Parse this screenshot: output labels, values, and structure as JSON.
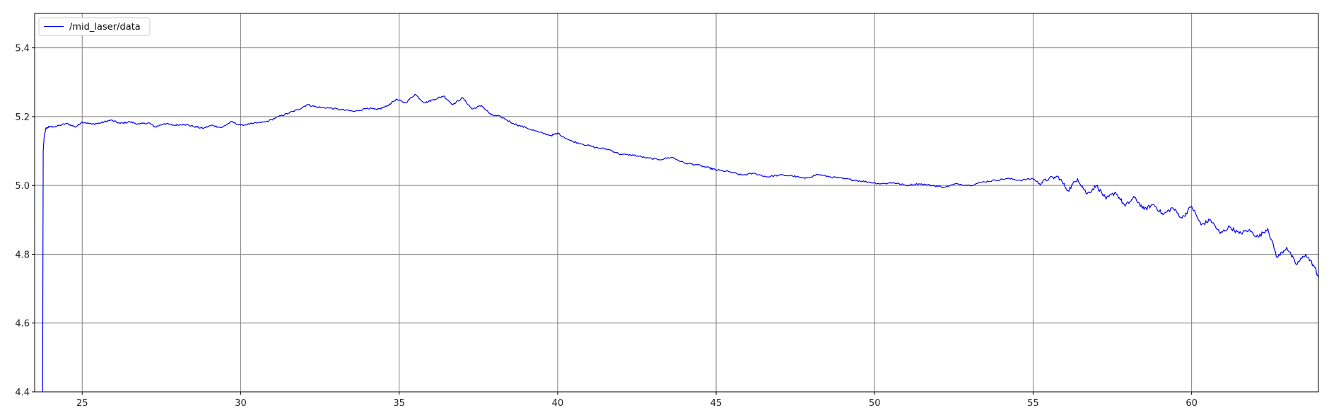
{
  "chart_data": {
    "type": "line",
    "title": "",
    "xlabel": "",
    "ylabel": "",
    "xlim": [
      23.5,
      64.0
    ],
    "ylim": [
      4.4,
      5.5
    ],
    "grid": true,
    "legend_position": "top-left",
    "x_ticks": [
      25,
      30,
      35,
      40,
      45,
      50,
      55,
      60
    ],
    "y_ticks": [
      4.4,
      4.6,
      4.8,
      5.0,
      5.2,
      5.4
    ],
    "x_tick_labels": [
      "25",
      "30",
      "35",
      "40",
      "45",
      "50",
      "55",
      "60"
    ],
    "y_tick_labels": [
      "4.4",
      "4.6",
      "4.8",
      "5.0",
      "5.2",
      "5.4"
    ],
    "series": [
      {
        "name": "/mid_laser/data",
        "color": "#0000ff",
        "x": [
          23.75,
          23.77,
          23.8,
          23.85,
          23.95,
          24.2,
          24.5,
          24.8,
          25.0,
          25.3,
          25.6,
          25.9,
          26.2,
          26.5,
          26.8,
          27.1,
          27.3,
          27.6,
          27.9,
          28.2,
          28.5,
          28.8,
          29.1,
          29.4,
          29.7,
          30.0,
          30.4,
          30.8,
          31.2,
          31.5,
          31.8,
          32.1,
          32.4,
          32.8,
          33.2,
          33.6,
          34.0,
          34.3,
          34.6,
          34.9,
          35.2,
          35.5,
          35.8,
          36.1,
          36.4,
          36.7,
          37.0,
          37.3,
          37.6,
          37.9,
          38.2,
          38.6,
          39.0,
          39.4,
          39.8,
          40.0,
          40.4,
          40.8,
          41.2,
          41.6,
          42.0,
          42.4,
          42.8,
          43.2,
          43.6,
          44.0,
          44.4,
          44.8,
          45.0,
          45.4,
          45.8,
          46.2,
          46.6,
          47.0,
          47.4,
          47.8,
          48.2,
          48.6,
          49.0,
          49.4,
          49.8,
          50.2,
          50.6,
          51.0,
          51.4,
          51.8,
          52.2,
          52.6,
          53.0,
          53.4,
          53.8,
          54.2,
          54.6,
          55.0,
          55.2,
          55.5,
          55.8,
          56.1,
          56.4,
          56.7,
          57.0,
          57.3,
          57.6,
          57.9,
          58.2,
          58.5,
          58.8,
          59.1,
          59.4,
          59.7,
          60.0,
          60.3,
          60.6,
          60.9,
          61.2,
          61.5,
          61.8,
          62.1,
          62.4,
          62.7,
          63.0,
          63.3,
          63.6,
          63.9,
          64.0
        ],
        "y": [
          4.4,
          5.1,
          5.14,
          5.165,
          5.17,
          5.172,
          5.18,
          5.17,
          5.185,
          5.178,
          5.182,
          5.19,
          5.18,
          5.185,
          5.178,
          5.182,
          5.17,
          5.18,
          5.175,
          5.178,
          5.172,
          5.166,
          5.175,
          5.168,
          5.185,
          5.175,
          5.18,
          5.185,
          5.2,
          5.21,
          5.22,
          5.235,
          5.228,
          5.225,
          5.22,
          5.215,
          5.225,
          5.22,
          5.23,
          5.25,
          5.24,
          5.265,
          5.24,
          5.25,
          5.26,
          5.235,
          5.255,
          5.222,
          5.232,
          5.205,
          5.2,
          5.18,
          5.168,
          5.155,
          5.145,
          5.152,
          5.13,
          5.12,
          5.11,
          5.105,
          5.09,
          5.088,
          5.08,
          5.075,
          5.082,
          5.065,
          5.06,
          5.05,
          5.045,
          5.04,
          5.03,
          5.035,
          5.025,
          5.03,
          5.028,
          5.02,
          5.032,
          5.025,
          5.02,
          5.015,
          5.01,
          5.005,
          5.008,
          5.0,
          5.005,
          5.0,
          4.995,
          5.005,
          5.0,
          5.01,
          5.015,
          5.02,
          5.015,
          5.02,
          5.005,
          5.02,
          5.025,
          4.985,
          5.02,
          4.975,
          5.0,
          4.96,
          4.98,
          4.94,
          4.965,
          4.93,
          4.945,
          4.915,
          4.935,
          4.905,
          4.94,
          4.885,
          4.9,
          4.86,
          4.88,
          4.86,
          4.87,
          4.85,
          4.875,
          4.79,
          4.82,
          4.77,
          4.8,
          4.76,
          4.73
        ]
      }
    ]
  }
}
